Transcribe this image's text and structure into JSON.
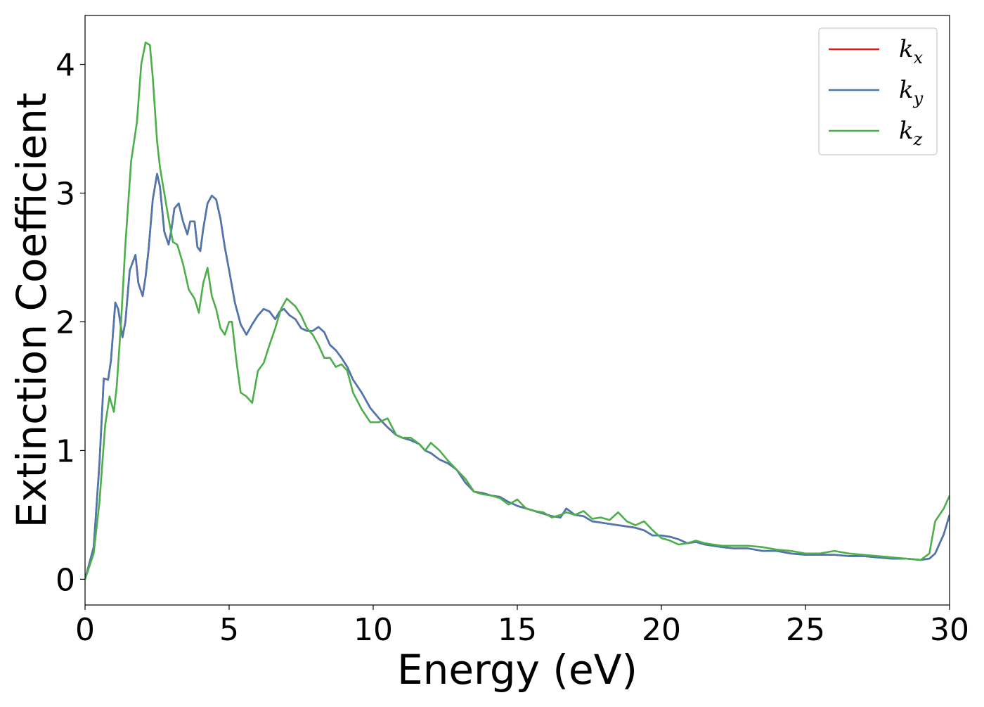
{
  "chart_data": {
    "type": "line",
    "xlabel": "Energy (eV)",
    "ylabel": "Extinction Coefficient",
    "xlim": [
      0,
      30
    ],
    "ylim": [
      -0.2,
      4.38
    ],
    "xticks": [
      0,
      5,
      10,
      15,
      20,
      25,
      30
    ],
    "yticks": [
      0,
      1,
      2,
      3,
      4
    ],
    "grid": false,
    "legend_position": "top-right",
    "series": [
      {
        "name": "k_x",
        "label_main": "k",
        "label_sub": "x",
        "color": "#e41a1c",
        "x": [
          0,
          0.3,
          0.5,
          0.65,
          0.8,
          0.9,
          1.05,
          1.15,
          1.3,
          1.4,
          1.55,
          1.75,
          1.85,
          2.0,
          2.1,
          2.2,
          2.35,
          2.5,
          2.6,
          2.75,
          2.9,
          3.0,
          3.1,
          3.25,
          3.4,
          3.55,
          3.65,
          3.8,
          3.9,
          4.0,
          4.1,
          4.25,
          4.4,
          4.55,
          4.7,
          4.85,
          5.0,
          5.2,
          5.4,
          5.6,
          5.8,
          6.0,
          6.2,
          6.4,
          6.6,
          6.75,
          6.9,
          7.1,
          7.3,
          7.5,
          7.7,
          7.9,
          8.1,
          8.3,
          8.5,
          8.7,
          8.9,
          9.1,
          9.3,
          9.6,
          9.9,
          10.2,
          10.5,
          10.8,
          11.0,
          11.3,
          11.6,
          11.8,
          12.0,
          12.3,
          12.6,
          12.9,
          13.2,
          13.5,
          13.8,
          14.1,
          14.4,
          14.7,
          15.0,
          15.3,
          15.6,
          15.9,
          16.2,
          16.5,
          16.7,
          17.0,
          17.3,
          17.6,
          17.9,
          18.2,
          18.5,
          18.8,
          19.1,
          19.4,
          19.7,
          20.0,
          20.3,
          20.6,
          20.9,
          21.2,
          21.5,
          21.8,
          22.1,
          22.5,
          23.0,
          23.5,
          24.0,
          24.5,
          25.0,
          25.5,
          26.0,
          26.5,
          27.0,
          27.5,
          28.0,
          28.5,
          29.0,
          29.3,
          29.5,
          29.8,
          30.0
        ],
        "y": [
          0,
          0.25,
          0.9,
          1.56,
          1.55,
          1.7,
          2.15,
          2.1,
          1.88,
          2.0,
          2.4,
          2.52,
          2.3,
          2.2,
          2.35,
          2.55,
          2.95,
          3.15,
          3.05,
          2.7,
          2.6,
          2.72,
          2.88,
          2.92,
          2.78,
          2.68,
          2.78,
          2.78,
          2.58,
          2.55,
          2.72,
          2.92,
          2.98,
          2.95,
          2.8,
          2.58,
          2.4,
          2.15,
          1.98,
          1.9,
          1.98,
          2.05,
          2.1,
          2.08,
          2.02,
          2.08,
          2.1,
          2.05,
          2.02,
          1.95,
          1.93,
          1.93,
          1.96,
          1.92,
          1.82,
          1.78,
          1.72,
          1.65,
          1.55,
          1.45,
          1.33,
          1.25,
          1.18,
          1.12,
          1.1,
          1.08,
          1.05,
          1.0,
          0.98,
          0.93,
          0.9,
          0.85,
          0.75,
          0.68,
          0.67,
          0.65,
          0.64,
          0.6,
          0.57,
          0.55,
          0.53,
          0.51,
          0.49,
          0.48,
          0.55,
          0.5,
          0.49,
          0.45,
          0.44,
          0.43,
          0.42,
          0.41,
          0.4,
          0.38,
          0.34,
          0.34,
          0.33,
          0.31,
          0.28,
          0.29,
          0.27,
          0.26,
          0.25,
          0.24,
          0.24,
          0.22,
          0.22,
          0.2,
          0.19,
          0.19,
          0.19,
          0.18,
          0.18,
          0.17,
          0.16,
          0.16,
          0.15,
          0.16,
          0.2,
          0.35,
          0.5
        ]
      },
      {
        "name": "k_y",
        "label_main": "k",
        "label_sub": "y",
        "color": "#4a78b0",
        "x": [
          0,
          0.3,
          0.5,
          0.65,
          0.8,
          0.9,
          1.05,
          1.15,
          1.3,
          1.4,
          1.55,
          1.75,
          1.85,
          2.0,
          2.1,
          2.2,
          2.35,
          2.5,
          2.6,
          2.75,
          2.9,
          3.0,
          3.1,
          3.25,
          3.4,
          3.55,
          3.65,
          3.8,
          3.9,
          4.0,
          4.1,
          4.25,
          4.4,
          4.55,
          4.7,
          4.85,
          5.0,
          5.2,
          5.4,
          5.6,
          5.8,
          6.0,
          6.2,
          6.4,
          6.6,
          6.75,
          6.9,
          7.1,
          7.3,
          7.5,
          7.7,
          7.9,
          8.1,
          8.3,
          8.5,
          8.7,
          8.9,
          9.1,
          9.3,
          9.6,
          9.9,
          10.2,
          10.5,
          10.8,
          11.0,
          11.3,
          11.6,
          11.8,
          12.0,
          12.3,
          12.6,
          12.9,
          13.2,
          13.5,
          13.8,
          14.1,
          14.4,
          14.7,
          15.0,
          15.3,
          15.6,
          15.9,
          16.2,
          16.5,
          16.7,
          17.0,
          17.3,
          17.6,
          17.9,
          18.2,
          18.5,
          18.8,
          19.1,
          19.4,
          19.7,
          20.0,
          20.3,
          20.6,
          20.9,
          21.2,
          21.5,
          21.8,
          22.1,
          22.5,
          23.0,
          23.5,
          24.0,
          24.5,
          25.0,
          25.5,
          26.0,
          26.5,
          27.0,
          27.5,
          28.0,
          28.5,
          29.0,
          29.3,
          29.5,
          29.8,
          30.0
        ],
        "y": [
          0,
          0.25,
          0.9,
          1.56,
          1.55,
          1.7,
          2.15,
          2.1,
          1.88,
          2.0,
          2.4,
          2.52,
          2.3,
          2.2,
          2.35,
          2.55,
          2.95,
          3.15,
          3.05,
          2.7,
          2.6,
          2.72,
          2.88,
          2.92,
          2.78,
          2.68,
          2.78,
          2.78,
          2.58,
          2.55,
          2.72,
          2.92,
          2.98,
          2.95,
          2.8,
          2.58,
          2.4,
          2.15,
          1.98,
          1.9,
          1.98,
          2.05,
          2.1,
          2.08,
          2.02,
          2.08,
          2.1,
          2.05,
          2.02,
          1.95,
          1.93,
          1.93,
          1.96,
          1.92,
          1.82,
          1.78,
          1.72,
          1.65,
          1.55,
          1.45,
          1.33,
          1.25,
          1.18,
          1.12,
          1.1,
          1.08,
          1.05,
          1.0,
          0.98,
          0.93,
          0.9,
          0.85,
          0.75,
          0.68,
          0.67,
          0.65,
          0.64,
          0.6,
          0.57,
          0.55,
          0.53,
          0.51,
          0.49,
          0.48,
          0.55,
          0.5,
          0.49,
          0.45,
          0.44,
          0.43,
          0.42,
          0.41,
          0.4,
          0.38,
          0.34,
          0.34,
          0.33,
          0.31,
          0.28,
          0.29,
          0.27,
          0.26,
          0.25,
          0.24,
          0.24,
          0.22,
          0.22,
          0.2,
          0.19,
          0.19,
          0.19,
          0.18,
          0.18,
          0.17,
          0.16,
          0.16,
          0.15,
          0.16,
          0.2,
          0.35,
          0.5
        ]
      },
      {
        "name": "k_z",
        "label_main": "k",
        "label_sub": "z",
        "color": "#4daf4a",
        "x": [
          0,
          0.3,
          0.5,
          0.7,
          0.85,
          1.0,
          1.1,
          1.25,
          1.4,
          1.6,
          1.8,
          1.95,
          2.1,
          2.25,
          2.35,
          2.5,
          2.6,
          2.75,
          2.9,
          3.05,
          3.2,
          3.4,
          3.6,
          3.8,
          3.95,
          4.1,
          4.25,
          4.4,
          4.55,
          4.7,
          4.85,
          5.0,
          5.1,
          5.25,
          5.4,
          5.6,
          5.8,
          6.0,
          6.2,
          6.4,
          6.6,
          6.8,
          7.0,
          7.15,
          7.3,
          7.5,
          7.7,
          7.9,
          8.1,
          8.3,
          8.5,
          8.7,
          8.9,
          9.1,
          9.3,
          9.6,
          9.9,
          10.2,
          10.5,
          10.8,
          11.0,
          11.3,
          11.6,
          11.8,
          12.0,
          12.3,
          12.6,
          12.9,
          13.2,
          13.5,
          13.8,
          14.1,
          14.4,
          14.7,
          15.0,
          15.3,
          15.6,
          15.9,
          16.2,
          16.5,
          16.7,
          17.0,
          17.3,
          17.6,
          17.9,
          18.2,
          18.5,
          18.8,
          19.1,
          19.4,
          19.7,
          20.0,
          20.3,
          20.6,
          20.9,
          21.2,
          21.5,
          21.8,
          22.1,
          22.5,
          23.0,
          23.5,
          24.0,
          24.5,
          25.0,
          25.5,
          26.0,
          26.5,
          27.0,
          27.5,
          28.0,
          28.5,
          29.0,
          29.3,
          29.5,
          29.8,
          30.0
        ],
        "y": [
          0,
          0.2,
          0.6,
          1.2,
          1.42,
          1.3,
          1.5,
          2.0,
          2.6,
          3.25,
          3.55,
          4.0,
          4.17,
          4.15,
          3.9,
          3.4,
          3.2,
          3.0,
          2.8,
          2.62,
          2.6,
          2.45,
          2.25,
          2.18,
          2.07,
          2.3,
          2.42,
          2.2,
          2.1,
          1.95,
          1.9,
          2.0,
          2.0,
          1.7,
          1.45,
          1.42,
          1.37,
          1.62,
          1.68,
          1.82,
          1.95,
          2.1,
          2.18,
          2.15,
          2.12,
          2.05,
          1.95,
          1.9,
          1.82,
          1.72,
          1.72,
          1.65,
          1.67,
          1.62,
          1.45,
          1.32,
          1.22,
          1.22,
          1.25,
          1.12,
          1.1,
          1.1,
          1.05,
          1.0,
          1.06,
          1.0,
          0.92,
          0.85,
          0.78,
          0.68,
          0.66,
          0.65,
          0.63,
          0.58,
          0.62,
          0.55,
          0.53,
          0.52,
          0.48,
          0.5,
          0.52,
          0.5,
          0.53,
          0.47,
          0.48,
          0.46,
          0.52,
          0.45,
          0.42,
          0.45,
          0.38,
          0.32,
          0.3,
          0.27,
          0.28,
          0.3,
          0.28,
          0.27,
          0.26,
          0.26,
          0.26,
          0.25,
          0.23,
          0.22,
          0.2,
          0.2,
          0.22,
          0.2,
          0.19,
          0.18,
          0.17,
          0.16,
          0.15,
          0.2,
          0.45,
          0.55,
          0.65
        ]
      }
    ]
  }
}
